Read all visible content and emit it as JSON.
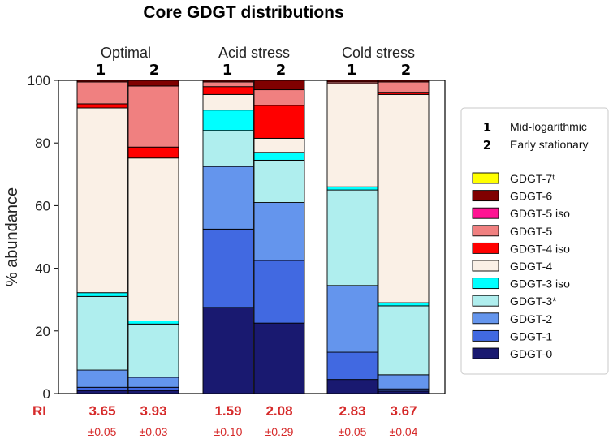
{
  "chart_data": {
    "type": "bar",
    "stacked": true,
    "title": "Core GDGT distributions",
    "ylabel": "% abundance",
    "ylim": [
      0,
      100
    ],
    "yticks": [
      "0",
      "20",
      "40",
      "60",
      "80",
      "100"
    ],
    "conditions": [
      {
        "name": "Optimal",
        "replicates": [
          "1",
          "2"
        ]
      },
      {
        "name": "Acid stress",
        "replicates": [
          "1",
          "2"
        ]
      },
      {
        "name": "Cold stress",
        "replicates": [
          "1",
          "2"
        ]
      }
    ],
    "categories": [
      "Optimal 1",
      "Optimal 2",
      "Acid stress 1",
      "Acid stress 2",
      "Cold stress 1",
      "Cold stress 2"
    ],
    "series": [
      {
        "name": "GDGT-0",
        "color": "#191970",
        "values": [
          1.0,
          1.0,
          27.5,
          22.5,
          4.5,
          0.8
        ]
      },
      {
        "name": "GDGT-1",
        "color": "#4169E1",
        "values": [
          1.0,
          1.0,
          25.0,
          20.0,
          8.7,
          0.7
        ]
      },
      {
        "name": "GDGT-2",
        "color": "#6495ED",
        "values": [
          5.5,
          3.2,
          20.0,
          18.5,
          21.3,
          4.5
        ]
      },
      {
        "name": "GDGT-3*",
        "color": "#AFEEEE",
        "values": [
          23.5,
          17.0,
          11.5,
          13.5,
          30.5,
          22.0
        ]
      },
      {
        "name": "GDGT-3 iso",
        "color": "#00FFFF",
        "values": [
          1.2,
          1.0,
          6.5,
          2.5,
          1.0,
          1.0
        ]
      },
      {
        "name": "GDGT-4",
        "color": "#FAF0E6",
        "values": [
          59.0,
          52.0,
          5.0,
          4.5,
          33.0,
          66.5
        ]
      },
      {
        "name": "GDGT-4 iso",
        "color": "#FF0000",
        "values": [
          1.3,
          3.5,
          2.5,
          10.5,
          0.0,
          0.7
        ]
      },
      {
        "name": "GDGT-5",
        "color": "#F08080",
        "values": [
          7.0,
          19.5,
          1.5,
          5.0,
          0.5,
          3.3
        ]
      },
      {
        "name": "GDGT-5 iso",
        "color": "#FF1493",
        "values": [
          0.0,
          0.0,
          0.0,
          0.0,
          0.0,
          0.0
        ]
      },
      {
        "name": "GDGT-6",
        "color": "#800000",
        "values": [
          0.5,
          1.8,
          0.5,
          3.0,
          0.5,
          0.5
        ]
      },
      {
        "name": "GDGT-7ᵗ",
        "color": "#FFFF00",
        "values": [
          0.0,
          0.0,
          0.0,
          0.0,
          0.0,
          0.0
        ]
      }
    ],
    "ri": {
      "label": "RI",
      "values": [
        "3.65",
        "3.93",
        "1.59",
        "2.08",
        "2.83",
        "3.67"
      ],
      "errors": [
        "±0.05",
        "±0.03",
        "±0.10",
        "±0.29",
        "±0.05",
        "±0.04"
      ]
    },
    "legend": {
      "phases": [
        {
          "num": "1",
          "label": "Mid-logarithmic"
        },
        {
          "num": "2",
          "label": "Early stationary"
        }
      ],
      "placement": "right"
    }
  }
}
